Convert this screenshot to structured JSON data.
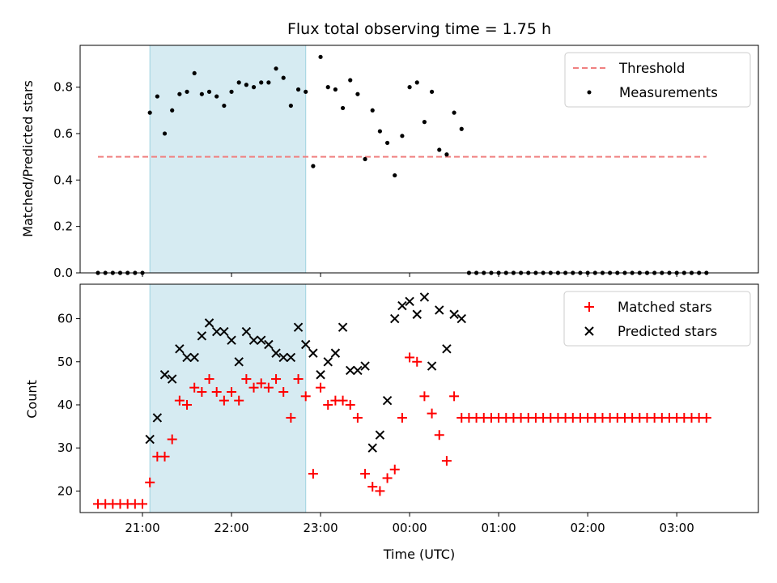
{
  "chart_data": [
    {
      "type": "scatter",
      "title": "Flux total observing time = 1.75 h",
      "ylabel": "Matched/Predicted stars",
      "xlabel": "",
      "ylim": [
        0,
        0.98
      ],
      "yticks": [
        0.0,
        0.2,
        0.4,
        0.6,
        0.8
      ],
      "ytick_labels": [
        "0.0",
        "0.2",
        "0.4",
        "0.6",
        "0.8"
      ],
      "xlim": [
        "20:18",
        "03:55"
      ],
      "shaded_interval": [
        "21:05",
        "22:50"
      ],
      "legend": {
        "placement": "top-right",
        "entries": [
          "Threshold",
          "Measurements"
        ]
      },
      "series": [
        {
          "name": "Threshold",
          "kind": "dashed-line",
          "color": "#f08080",
          "x": [
            "20:30",
            "03:20"
          ],
          "y": [
            0.5,
            0.5
          ]
        },
        {
          "name": "Measurements",
          "kind": "points",
          "color": "#000000",
          "x": [
            "20:30",
            "20:35",
            "20:40",
            "20:45",
            "20:50",
            "20:55",
            "21:00",
            "21:05",
            "21:10",
            "21:15",
            "21:20",
            "21:25",
            "21:30",
            "21:35",
            "21:40",
            "21:45",
            "21:50",
            "21:55",
            "22:00",
            "22:05",
            "22:10",
            "22:15",
            "22:20",
            "22:25",
            "22:30",
            "22:35",
            "22:40",
            "22:45",
            "22:50",
            "22:55",
            "23:00",
            "23:05",
            "23:10",
            "23:15",
            "23:20",
            "23:25",
            "23:30",
            "23:35",
            "23:40",
            "23:45",
            "23:50",
            "23:55",
            "00:00",
            "00:05",
            "00:10",
            "00:15",
            "00:20",
            "00:25",
            "00:30",
            "00:35",
            "00:40",
            "00:45",
            "00:50",
            "00:55",
            "01:00",
            "01:05",
            "01:10",
            "01:15",
            "01:20",
            "01:25",
            "01:30",
            "01:35",
            "01:40",
            "01:45",
            "01:50",
            "01:55",
            "02:00",
            "02:05",
            "02:10",
            "02:15",
            "02:20",
            "02:25",
            "02:30",
            "02:35",
            "02:40",
            "02:45",
            "02:50",
            "02:55",
            "03:00",
            "03:05",
            "03:10",
            "03:15",
            "03:20"
          ],
          "y": [
            0,
            0,
            0,
            0,
            0,
            0,
            0,
            0.69,
            0.76,
            0.6,
            0.7,
            0.77,
            0.78,
            0.86,
            0.77,
            0.78,
            0.76,
            0.72,
            0.78,
            0.82,
            0.81,
            0.8,
            0.82,
            0.82,
            0.88,
            0.84,
            0.72,
            0.79,
            0.78,
            0.46,
            0.93,
            0.8,
            0.79,
            0.71,
            0.83,
            0.77,
            0.49,
            0.7,
            0.61,
            0.56,
            0.42,
            0.59,
            0.8,
            0.82,
            0.65,
            0.78,
            0.53,
            0.51,
            0.69,
            0.62,
            0,
            0,
            0,
            0,
            0,
            0,
            0,
            0,
            0,
            0,
            0,
            0,
            0,
            0,
            0,
            0,
            0,
            0,
            0,
            0,
            0,
            0,
            0,
            0,
            0,
            0,
            0,
            0,
            0,
            0,
            0,
            0,
            0
          ]
        }
      ]
    },
    {
      "type": "scatter",
      "title": "",
      "xlabel": "Time (UTC)",
      "ylabel": "Count",
      "ylim": [
        15,
        68
      ],
      "yticks": [
        20,
        30,
        40,
        50,
        60
      ],
      "ytick_labels": [
        "20",
        "30",
        "40",
        "50",
        "60"
      ],
      "xlim": [
        "20:18",
        "03:55"
      ],
      "xticks": [
        "21:00",
        "22:00",
        "23:00",
        "00:00",
        "01:00",
        "02:00",
        "03:00"
      ],
      "xtick_labels": [
        "21:00",
        "22:00",
        "23:00",
        "00:00",
        "01:00",
        "02:00",
        "03:00"
      ],
      "shaded_interval": [
        "21:05",
        "22:50"
      ],
      "legend": {
        "placement": "top-right",
        "entries": [
          "Matched stars",
          "Predicted stars"
        ]
      },
      "series": [
        {
          "name": "Matched stars",
          "marker": "plus",
          "color": "#ff0000",
          "x": [
            "20:30",
            "20:35",
            "20:40",
            "20:45",
            "20:50",
            "20:55",
            "21:00",
            "21:05",
            "21:10",
            "21:15",
            "21:20",
            "21:25",
            "21:30",
            "21:35",
            "21:40",
            "21:45",
            "21:50",
            "21:55",
            "22:00",
            "22:05",
            "22:10",
            "22:15",
            "22:20",
            "22:25",
            "22:30",
            "22:35",
            "22:40",
            "22:45",
            "22:50",
            "22:55",
            "23:00",
            "23:05",
            "23:10",
            "23:15",
            "23:20",
            "23:25",
            "23:30",
            "23:35",
            "23:40",
            "23:45",
            "23:50",
            "23:55",
            "00:00",
            "00:05",
            "00:10",
            "00:15",
            "00:20",
            "00:25",
            "00:30",
            "00:35",
            "00:40",
            "00:45",
            "00:50",
            "00:55",
            "01:00",
            "01:05",
            "01:10",
            "01:15",
            "01:20",
            "01:25",
            "01:30",
            "01:35",
            "01:40",
            "01:45",
            "01:50",
            "01:55",
            "02:00",
            "02:05",
            "02:10",
            "02:15",
            "02:20",
            "02:25",
            "02:30",
            "02:35",
            "02:40",
            "02:45",
            "02:50",
            "02:55",
            "03:00",
            "03:05",
            "03:10",
            "03:15",
            "03:20"
          ],
          "y": [
            17,
            17,
            17,
            17,
            17,
            17,
            17,
            22,
            28,
            28,
            32,
            41,
            40,
            44,
            43,
            46,
            43,
            41,
            43,
            41,
            46,
            44,
            45,
            44,
            46,
            43,
            37,
            46,
            42,
            24,
            44,
            40,
            41,
            41,
            40,
            37,
            24,
            21,
            20,
            23,
            25,
            37,
            51,
            50,
            42,
            38,
            33,
            27,
            42,
            37,
            37,
            37,
            37,
            37,
            37,
            37,
            37,
            37,
            37,
            37,
            37,
            37,
            37,
            37,
            37,
            37,
            37,
            37,
            37,
            37,
            37,
            37,
            37,
            37,
            37,
            37,
            37,
            37,
            37,
            37,
            37,
            37,
            37
          ]
        },
        {
          "name": "Predicted stars",
          "marker": "x",
          "color": "#000000",
          "x": [
            "21:05",
            "21:10",
            "21:15",
            "21:20",
            "21:25",
            "21:30",
            "21:35",
            "21:40",
            "21:45",
            "21:50",
            "21:55",
            "22:00",
            "22:05",
            "22:10",
            "22:15",
            "22:20",
            "22:25",
            "22:30",
            "22:35",
            "22:40",
            "22:45",
            "22:50",
            "22:55",
            "23:00",
            "23:05",
            "23:10",
            "23:15",
            "23:20",
            "23:25",
            "23:30",
            "23:35",
            "23:40",
            "23:45",
            "23:50",
            "23:55",
            "00:00",
            "00:05",
            "00:10",
            "00:15",
            "00:20",
            "00:25",
            "00:30",
            "00:35"
          ],
          "y": [
            32,
            37,
            47,
            46,
            53,
            51,
            51,
            56,
            59,
            57,
            57,
            55,
            50,
            57,
            55,
            55,
            54,
            52,
            51,
            51,
            58,
            54,
            52,
            47,
            50,
            52,
            58,
            48,
            48,
            49,
            30,
            33,
            41,
            60,
            63,
            64,
            61,
            65,
            49,
            62,
            53,
            61,
            60
          ]
        }
      ]
    }
  ]
}
